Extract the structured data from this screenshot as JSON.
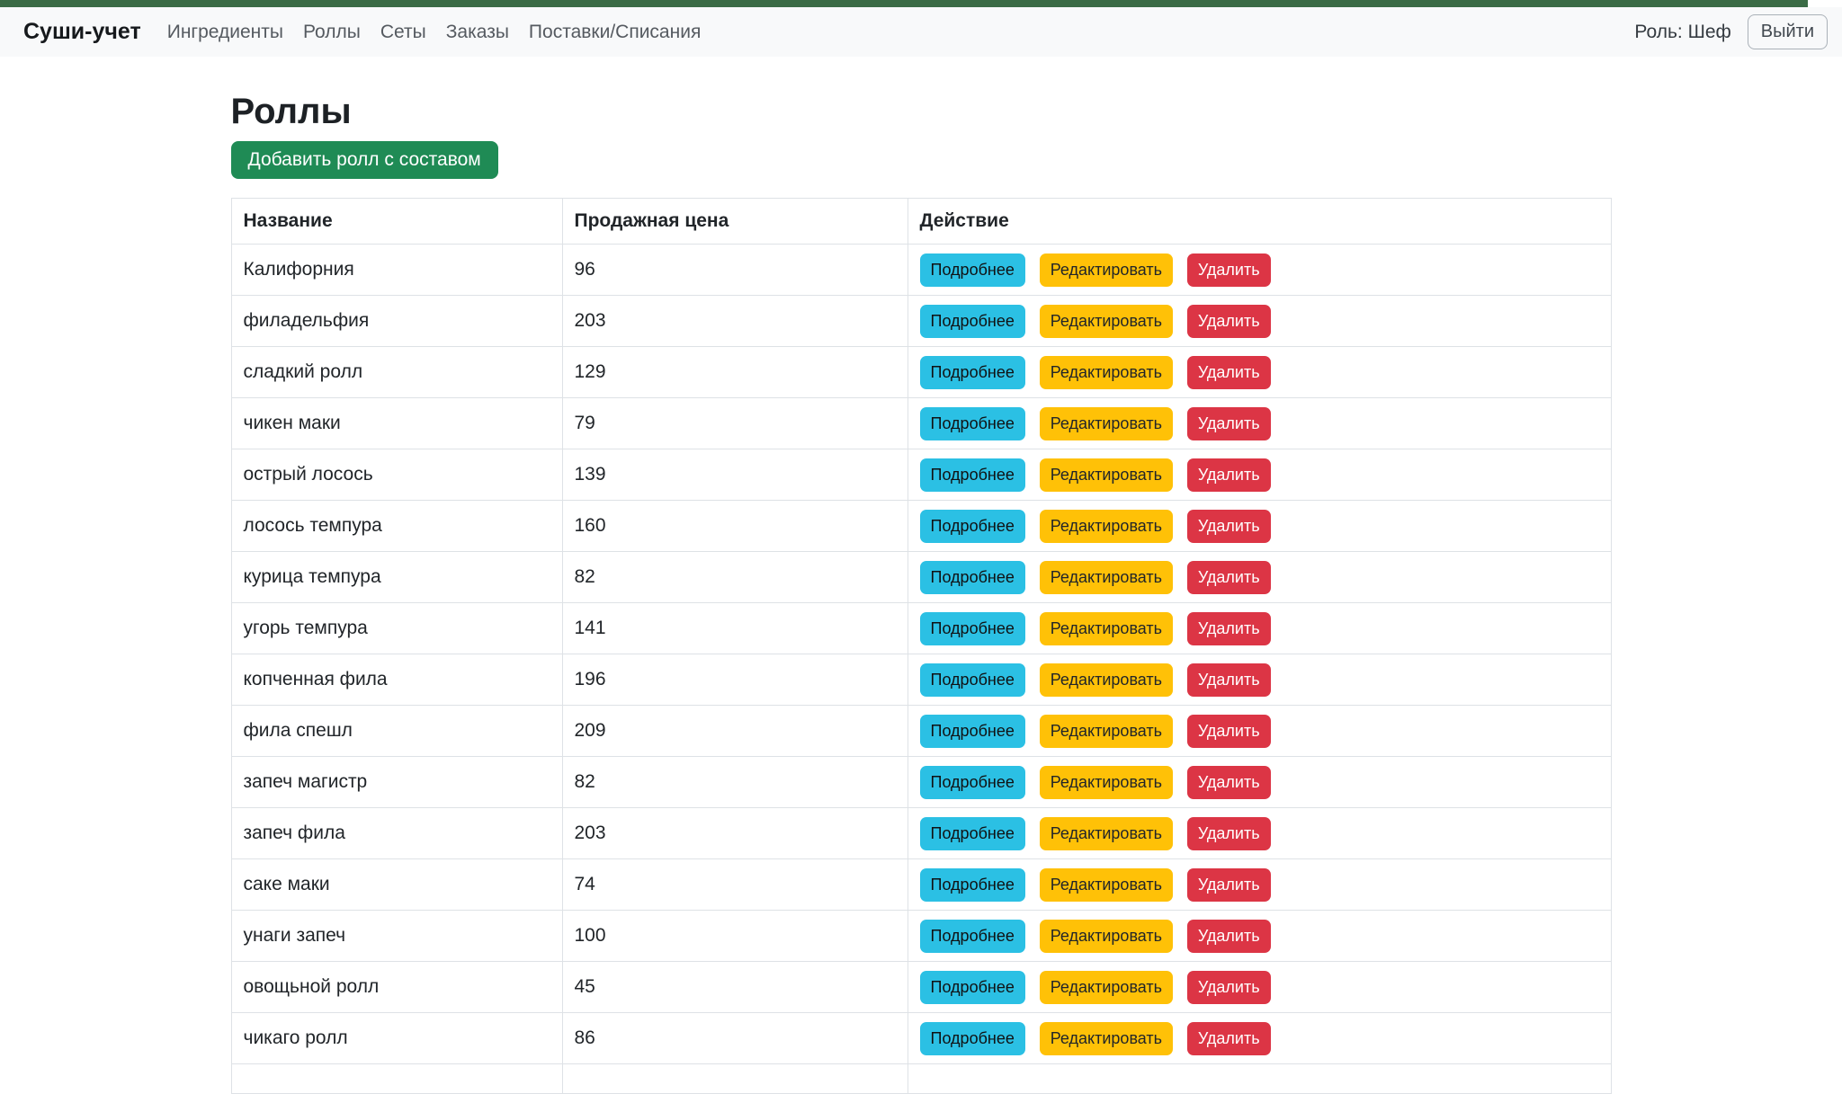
{
  "navbar": {
    "brand": "Суши-учет",
    "links": [
      {
        "label": "Ингредиенты"
      },
      {
        "label": "Роллы"
      },
      {
        "label": "Сеты"
      },
      {
        "label": "Заказы"
      },
      {
        "label": "Поставки/Списания"
      }
    ],
    "role_label": "Роль: Шеф",
    "logout_label": "Выйти"
  },
  "page": {
    "title": "Роллы",
    "add_button_label": "Добавить ролл с составом"
  },
  "table": {
    "columns": [
      "Название",
      "Продажная цена",
      "Действие"
    ],
    "action_buttons": [
      "Подробнее",
      "Редактировать",
      "Удалить"
    ],
    "rows": [
      {
        "name": "Калифорния",
        "price": "96"
      },
      {
        "name": "филадельфия",
        "price": "203"
      },
      {
        "name": "сладкий ролл",
        "price": "129"
      },
      {
        "name": "чикен маки",
        "price": "79"
      },
      {
        "name": "острый лосось",
        "price": "139"
      },
      {
        "name": "лосось темпура",
        "price": "160"
      },
      {
        "name": "курица темпура",
        "price": "82"
      },
      {
        "name": "угорь темпура",
        "price": "141"
      },
      {
        "name": "копченная фила",
        "price": "196"
      },
      {
        "name": "фила спешл",
        "price": "209"
      },
      {
        "name": "запеч магистр",
        "price": "82"
      },
      {
        "name": "запеч фила",
        "price": "203"
      },
      {
        "name": "саке маки",
        "price": "74"
      },
      {
        "name": "унаги запеч",
        "price": "100"
      },
      {
        "name": "овощьной ролл",
        "price": "45"
      },
      {
        "name": "чикаго ролл",
        "price": "86"
      }
    ],
    "partial_row": {
      "name": "",
      "price": ""
    }
  },
  "colors": {
    "top_accent_green": "#3a6b45",
    "primary_green": "#1f8b55",
    "info_cyan": "#2bc0e4",
    "warning_yellow": "#ffc107",
    "danger_red": "#dc3545",
    "navbar_bg": "#f8f9fa",
    "table_border": "#dee2e6"
  }
}
